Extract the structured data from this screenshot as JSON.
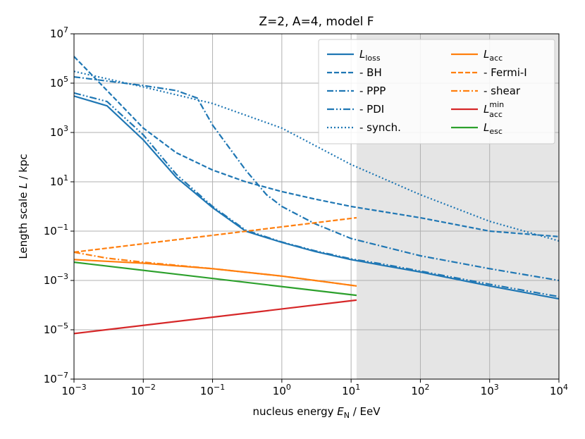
{
  "chart_data": {
    "type": "line",
    "title": "Z=2, A=4, model F",
    "xlabel": "nucleus energy E_N / EeV",
    "ylabel": "Length scale L / kpc",
    "xscale": "log",
    "yscale": "log",
    "xlim": [
      0.001,
      10000
    ],
    "ylim": [
      1e-07,
      10000000.0
    ],
    "grid": true,
    "shaded_region": {
      "x_from": 12,
      "x_to": 10000,
      "color": "#e5e5e5"
    },
    "x_ticks": [
      {
        "value": 0.001,
        "base": "10",
        "exp": "−3"
      },
      {
        "value": 0.01,
        "base": "10",
        "exp": "−2"
      },
      {
        "value": 0.1,
        "base": "10",
        "exp": "−1"
      },
      {
        "value": 1,
        "base": "10",
        "exp": "0"
      },
      {
        "value": 10,
        "base": "10",
        "exp": "1"
      },
      {
        "value": 100,
        "base": "10",
        "exp": "2"
      },
      {
        "value": 1000,
        "base": "10",
        "exp": "3"
      },
      {
        "value": 10000,
        "base": "10",
        "exp": "4"
      }
    ],
    "y_ticks": [
      {
        "value": 1e-07,
        "base": "10",
        "exp": "−7"
      },
      {
        "value": 1e-05,
        "base": "10",
        "exp": "−5"
      },
      {
        "value": 0.001,
        "base": "10",
        "exp": "−3"
      },
      {
        "value": 0.1,
        "base": "10",
        "exp": "−1"
      },
      {
        "value": 10,
        "base": "10",
        "exp": "1"
      },
      {
        "value": 1000,
        "base": "10",
        "exp": "3"
      },
      {
        "value": 100000,
        "base": "10",
        "exp": "5"
      },
      {
        "value": 10000000,
        "base": "10",
        "exp": "7"
      }
    ],
    "legend_position": "top-right",
    "series": [
      {
        "id": "loss",
        "name": "L_loss",
        "label_main": "L",
        "label_sub": "loss",
        "label_sup": "",
        "label_prefix": "",
        "color": "#1f77b4",
        "dash": "",
        "x": [
          0.001,
          0.003,
          0.01,
          0.03,
          0.1,
          0.3,
          1,
          3,
          10,
          30,
          100,
          1000,
          10000
        ],
        "y": [
          30000,
          12000,
          500,
          15,
          0.9,
          0.1,
          0.035,
          0.015,
          0.007,
          0.004,
          0.0022,
          0.0006,
          0.00018
        ]
      },
      {
        "id": "bh",
        "name": "- BH",
        "label_main": "",
        "label_sub": "",
        "label_sup": "",
        "label_prefix": "- BH",
        "color": "#1f77b4",
        "dash": "7,3",
        "x": [
          0.001,
          0.003,
          0.01,
          0.03,
          0.1,
          0.3,
          1,
          3,
          10,
          100,
          1000,
          10000
        ],
        "y": [
          1200000,
          50000,
          1500,
          150,
          30,
          10,
          4,
          2,
          1,
          0.35,
          0.1,
          0.06
        ]
      },
      {
        "id": "ppp",
        "name": "- PPP",
        "label_main": "",
        "label_sub": "",
        "label_sup": "",
        "label_prefix": "- PPP",
        "color": "#1f77b4",
        "dash": "9,3,2,3",
        "x": [
          0.001,
          0.01,
          0.03,
          0.06,
          0.1,
          0.3,
          0.6,
          1,
          3,
          10,
          100,
          1000,
          10000
        ],
        "y": [
          180000,
          80000,
          50000,
          25000,
          2000,
          30,
          3,
          1,
          0.2,
          0.05,
          0.01,
          0.003,
          0.001
        ]
      },
      {
        "id": "pdi",
        "name": "- PDI",
        "label_main": "",
        "label_sub": "",
        "label_sup": "",
        "label_prefix": "- PDI",
        "color": "#1f77b4",
        "dash": "10,3,2,3,2,3",
        "x": [
          0.001,
          0.003,
          0.01,
          0.03,
          0.1,
          0.3,
          1,
          3,
          10,
          30,
          100,
          1000,
          10000
        ],
        "y": [
          40000,
          18000,
          800,
          20,
          1,
          0.11,
          0.036,
          0.016,
          0.0075,
          0.0045,
          0.0024,
          0.0007,
          0.00022
        ]
      },
      {
        "id": "synch",
        "name": "- synch.",
        "label_main": "",
        "label_sub": "",
        "label_sup": "",
        "label_prefix": "- synch.",
        "color": "#1f77b4",
        "dash": "2,3",
        "x": [
          0.001,
          0.01,
          0.1,
          1,
          10,
          100,
          1000,
          10000
        ],
        "y": [
          300000,
          70000,
          15000,
          1500,
          50,
          3,
          0.25,
          0.04
        ]
      },
      {
        "id": "acc",
        "name": "L_acc",
        "label_main": "L",
        "label_sub": "acc",
        "label_sup": "",
        "label_prefix": "",
        "color": "#ff7f0e",
        "dash": "",
        "x": [
          0.001,
          0.01,
          0.1,
          1,
          12
        ],
        "y": [
          0.007,
          0.005,
          0.003,
          0.0015,
          0.0006
        ]
      },
      {
        "id": "fermi",
        "name": "- Fermi-I",
        "label_main": "",
        "label_sub": "",
        "label_sup": "",
        "label_prefix": "- Fermi-I",
        "color": "#ff7f0e",
        "dash": "7,3",
        "x": [
          0.001,
          12
        ],
        "y": [
          0.014,
          0.35
        ]
      },
      {
        "id": "shear",
        "name": "- shear",
        "label_main": "",
        "label_sub": "",
        "label_sup": "",
        "label_prefix": "- shear",
        "color": "#ff7f0e",
        "dash": "9,3,2,3",
        "x": [
          0.001,
          0.003,
          0.01,
          0.1,
          1,
          12
        ],
        "y": [
          0.014,
          0.008,
          0.0055,
          0.003,
          0.0015,
          0.0006
        ]
      },
      {
        "id": "accmin",
        "name": "L_acc^min",
        "label_main": "L",
        "label_sub": "acc",
        "label_sup": "min",
        "label_prefix": "",
        "color": "#d62728",
        "dash": "",
        "x": [
          0.001,
          12
        ],
        "y": [
          7e-06,
          0.00016
        ]
      },
      {
        "id": "esc",
        "name": "L_esc",
        "label_main": "L",
        "label_sub": "esc",
        "label_sup": "",
        "label_prefix": "",
        "color": "#2ca02c",
        "dash": "",
        "x": [
          0.001,
          12
        ],
        "y": [
          0.0055,
          0.00025
        ]
      }
    ]
  }
}
